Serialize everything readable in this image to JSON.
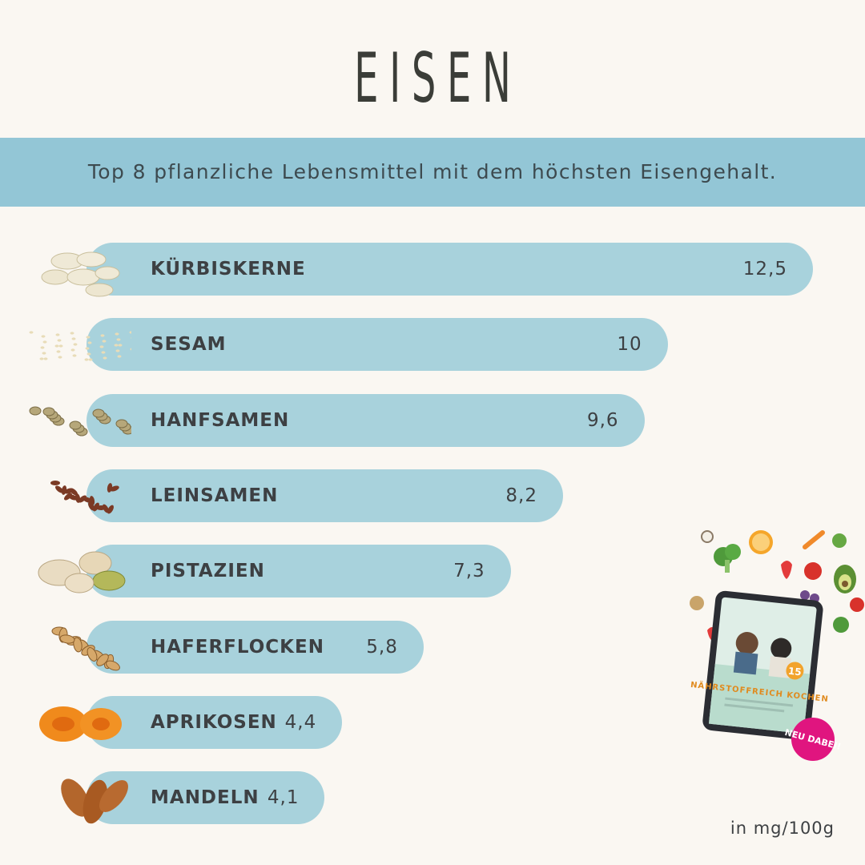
{
  "title": "EISEN",
  "subtitle": "Top 8 pflanzliche Lebensmittel mit dem höchsten Eisengehalt.",
  "unit": "in mg/100g",
  "colors": {
    "background": "#faf7f2",
    "banner": "#93c6d6",
    "bar": "#a8d2dc",
    "badge": "#e0157f"
  },
  "chart_data": {
    "type": "bar",
    "orientation": "horizontal",
    "categories": [
      "KÜRBISKERNE",
      "SESAM",
      "HANFSAMEN",
      "LEINSAMEN",
      "PISTAZIEN",
      "HAFERFLOCKEN",
      "APRIKOSEN",
      "MANDELN"
    ],
    "value_labels": [
      "12,5",
      "10",
      "9,6",
      "8,2",
      "7,3",
      "5,8",
      "4,4",
      "4,1"
    ],
    "values": [
      12.5,
      10,
      9.6,
      8.2,
      7.3,
      5.8,
      4.4,
      4.1
    ],
    "icons": [
      "pumpkin-seeds-icon",
      "sesame-icon",
      "hemp-seeds-icon",
      "flaxseed-icon",
      "pistachio-icon",
      "oat-flakes-icon",
      "apricot-icon",
      "almond-icon"
    ]
  },
  "promo": {
    "book_title": "NÄHRSTOFFREICH KOCHEN",
    "book_number": "15",
    "badge": "NEU DABEI!"
  }
}
